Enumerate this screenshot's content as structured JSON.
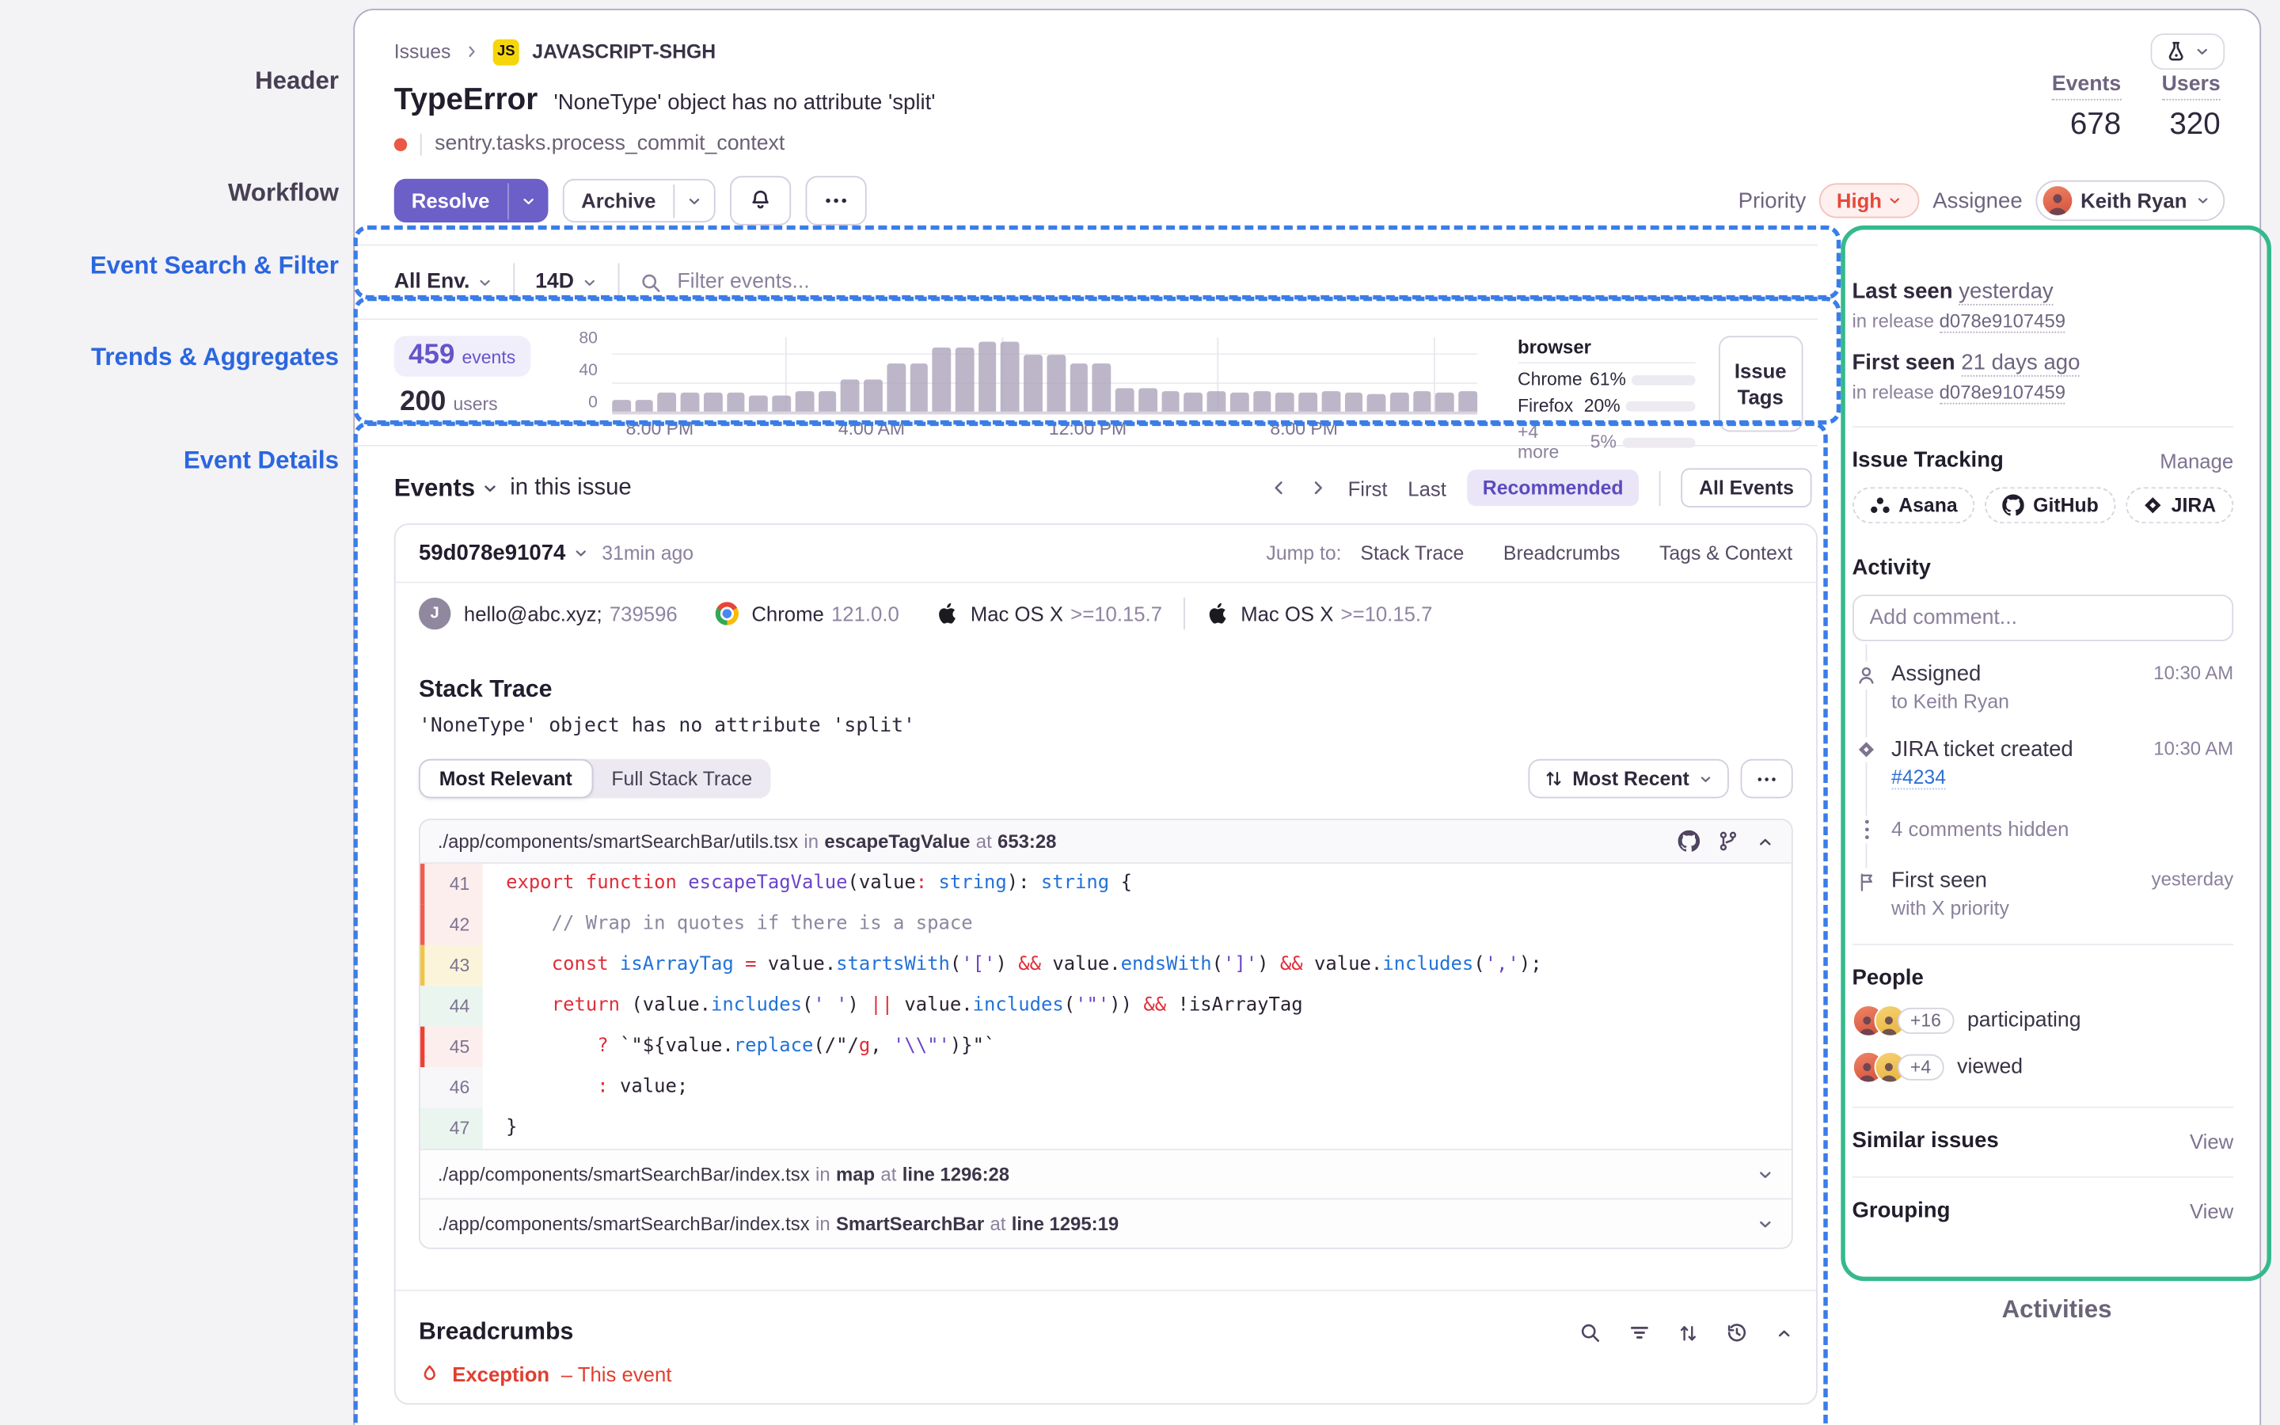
{
  "annotations": {
    "header": "Header",
    "workflow": "Workflow",
    "search": "Event Search & Filter",
    "trends": "Trends & Aggregates",
    "details": "Event Details",
    "activities": "Activities"
  },
  "breadcrumb": {
    "issues": "Issues",
    "badge": "JS",
    "project": "JAVASCRIPT-SHGH"
  },
  "header": {
    "title": "TypeError",
    "subtitle": "'NoneType' object has no attribute 'split'",
    "culprit": "sentry.tasks.process_commit_context",
    "events_label": "Events",
    "events_value": "678",
    "users_label": "Users",
    "users_value": "320"
  },
  "workflow": {
    "resolve": "Resolve",
    "archive": "Archive",
    "priority_label": "Priority",
    "priority_value": "High",
    "assignee_label": "Assignee",
    "assignee_name": "Keith Ryan"
  },
  "filters": {
    "env": "All Env.",
    "range": "14D",
    "search_placeholder": "Filter events..."
  },
  "trends": {
    "events_value": "459",
    "events_label": "events",
    "users_value": "200",
    "users_label": "users",
    "issue_tags": [
      "Issue",
      "Tags"
    ],
    "browser": {
      "title": "browser",
      "rows": [
        {
          "name": "Chrome",
          "pct": "61%",
          "fill": 61,
          "muted": false
        },
        {
          "name": "Firefox",
          "pct": "20%",
          "fill": 20,
          "muted": false
        },
        {
          "name": "+4 more",
          "pct": "5%",
          "fill": 5,
          "muted": true
        }
      ]
    }
  },
  "chart_data": {
    "type": "bar",
    "x_ticks": [
      "8:00 PM",
      "4:00 AM",
      "12:00 PM",
      "8:00 PM"
    ],
    "x_tick_pos": [
      5.5,
      30,
      55,
      80
    ],
    "y_ticks": [
      "80",
      "40",
      "0"
    ],
    "ylim": [
      0,
      100
    ],
    "values": [
      18,
      18,
      27,
      27,
      27,
      27,
      24,
      24,
      30,
      30,
      45,
      45,
      68,
      68,
      90,
      90,
      97,
      97,
      80,
      80,
      68,
      68,
      33,
      33,
      30,
      28,
      30,
      28,
      30,
      28,
      28,
      30,
      28,
      25,
      28,
      30,
      28,
      30
    ]
  },
  "events_section": {
    "title": "Events",
    "in_issue": "in this issue",
    "first": "First",
    "last": "Last",
    "recommended": "Recommended",
    "all_events": "All Events"
  },
  "event": {
    "id": "59d078e91074",
    "age": "31min ago",
    "jump_label": "Jump to:",
    "jump_links": [
      "Stack Trace",
      "Breadcrumbs",
      "Tags & Context"
    ],
    "avatar_initial": "J",
    "user_email": "hello@abc.xyz;",
    "user_id": "739596",
    "browser_name": "Chrome",
    "browser_version": "121.0.0",
    "os_name": "Mac OS X",
    "os_version": ">=10.15.7",
    "os2_name": "Mac OS X",
    "os2_version": ">=10.15.7"
  },
  "stack_trace": {
    "heading": "Stack Trace",
    "message": "'NoneType' object has no attribute 'split'",
    "tab_active": "Most Relevant",
    "tab_inactive": "Full Stack Trace",
    "sort": "Most Recent",
    "frame": {
      "path": "./app/components/smartSearchBar/utils.tsx",
      "in": "in",
      "fn": "escapeTagValue",
      "at": "at",
      "loc": "653:28"
    },
    "code": [
      {
        "num": "41",
        "g": "err",
        "tokens": [
          [
            "r",
            "export"
          ],
          [
            "d",
            " "
          ],
          [
            "r",
            "function"
          ],
          [
            "d",
            " "
          ],
          [
            "v",
            "escapeTagValue"
          ],
          [
            "d",
            "(value"
          ],
          [
            "r",
            ":"
          ],
          [
            "b",
            " string"
          ],
          [
            "d",
            "): "
          ],
          [
            "b",
            "string"
          ],
          [
            "d",
            " {"
          ]
        ]
      },
      {
        "num": "42",
        "g": "err",
        "tokens": [
          [
            "g",
            "    // Wrap in quotes if there is a space"
          ]
        ]
      },
      {
        "num": "43",
        "g": "warn",
        "tokens": [
          [
            "d",
            "    "
          ],
          [
            "r",
            "const"
          ],
          [
            "d",
            " "
          ],
          [
            "b",
            "isArrayTag"
          ],
          [
            "d",
            " "
          ],
          [
            "r",
            "="
          ],
          [
            "d",
            " value."
          ],
          [
            "b",
            "startsWith"
          ],
          [
            "d",
            "("
          ],
          [
            "v",
            "'['"
          ],
          [
            "d",
            ") "
          ],
          [
            "r",
            "&&"
          ],
          [
            "d",
            " value."
          ],
          [
            "b",
            "endsWith"
          ],
          [
            "d",
            "("
          ],
          [
            "v",
            "']'"
          ],
          [
            "d",
            ") "
          ],
          [
            "r",
            "&&"
          ],
          [
            "d",
            " value."
          ],
          [
            "b",
            "includes"
          ],
          [
            "d",
            "("
          ],
          [
            "v",
            "','"
          ],
          [
            "d",
            ");"
          ]
        ]
      },
      {
        "num": "44",
        "g": "ok",
        "tokens": [
          [
            "d",
            "    "
          ],
          [
            "r",
            "return"
          ],
          [
            "d",
            " (value."
          ],
          [
            "b",
            "includes"
          ],
          [
            "d",
            "("
          ],
          [
            "v",
            "' '"
          ],
          [
            "d",
            ") "
          ],
          [
            "r",
            "||"
          ],
          [
            "d",
            " value."
          ],
          [
            "b",
            "includes"
          ],
          [
            "d",
            "("
          ],
          [
            "v",
            "'\"'"
          ],
          [
            "d",
            ")) "
          ],
          [
            "r",
            "&&"
          ],
          [
            "d",
            " !isArrayTag"
          ]
        ]
      },
      {
        "num": "45",
        "g": "err2",
        "tokens": [
          [
            "d",
            "        "
          ],
          [
            "r",
            "?"
          ],
          [
            "d",
            " `\"${value."
          ],
          [
            "b",
            "replace"
          ],
          [
            "d",
            "(/\"/"
          ],
          [
            "r",
            "g"
          ],
          [
            "d",
            ", "
          ],
          [
            "v",
            "'\\\\\"'"
          ],
          [
            "d",
            ")}\"`"
          ]
        ]
      },
      {
        "num": "46",
        "g": "plain",
        "tokens": [
          [
            "d",
            "        "
          ],
          [
            "r",
            ":"
          ],
          [
            "d",
            " value;"
          ]
        ]
      },
      {
        "num": "47",
        "g": "ok",
        "tokens": [
          [
            "d",
            "}"
          ]
        ]
      }
    ],
    "collapsed_frames": [
      {
        "path": "./app/components/smartSearchBar/index.tsx",
        "in": "in",
        "fn": "map",
        "at": "at",
        "loc": "line 1296:28"
      },
      {
        "path": "./app/components/smartSearchBar/index.tsx",
        "in": "in",
        "fn": "SmartSearchBar",
        "at": "at",
        "loc": "line 1295:19"
      }
    ]
  },
  "breadcrumbs_section": {
    "title": "Breadcrumbs",
    "crumb_type": "Exception",
    "crumb_note": "– This event"
  },
  "sidebar": {
    "last_seen_label": "Last seen",
    "last_seen_value": "yesterday",
    "release_prefix": "in release",
    "release": "d078e9107459",
    "first_seen_label": "First seen",
    "first_seen_value": "21 days ago",
    "release2": "d078e9107459",
    "issue_tracking": "Issue Tracking",
    "manage": "Manage",
    "integrations": [
      "Asana",
      "GitHub",
      "JIRA"
    ],
    "activity_title": "Activity",
    "comment_placeholder": "Add comment...",
    "activity_items": [
      {
        "icon": "user",
        "title": "Assigned",
        "time": "10:30 AM",
        "sub": "to Keith Ryan"
      },
      {
        "icon": "diamond",
        "title": "JIRA ticket created",
        "time": "10:30 AM",
        "link": "#4234"
      },
      {
        "icon": "dots",
        "muted": "4 comments hidden"
      },
      {
        "icon": "flag",
        "title": "First seen",
        "time": "yesterday",
        "sub": "with X priority"
      }
    ],
    "people_title": "People",
    "people_rows": [
      {
        "count": "+16",
        "label": "participating"
      },
      {
        "count": "+4",
        "label": "viewed"
      }
    ],
    "similar": "Similar issues",
    "similar_action": "View",
    "grouping": "Grouping",
    "grouping_action": "View"
  }
}
